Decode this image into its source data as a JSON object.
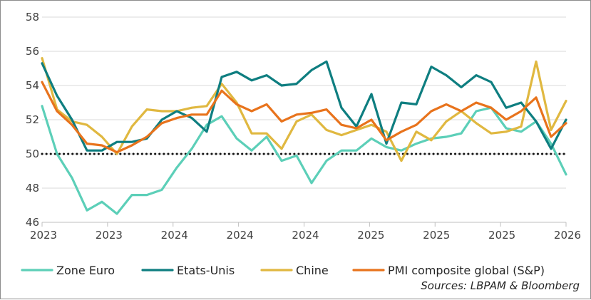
{
  "chart_data": {
    "type": "line",
    "x_labels": [
      "2023",
      "2023",
      "2024",
      "2024",
      "2024",
      "2025",
      "2025",
      "2025",
      "2026"
    ],
    "ylim": [
      46,
      58
    ],
    "yticks": [
      46,
      48,
      50,
      52,
      54,
      56,
      58
    ],
    "reference_line": 50,
    "grid": "horizontal",
    "legend_position": "bottom",
    "source": "Sources: LBPAM & Bloomberg",
    "series": [
      {
        "name": "Zone Euro",
        "color": "#5ccfb8",
        "values": [
          52.8,
          50.0,
          48.6,
          46.7,
          47.2,
          46.5,
          47.6,
          47.6,
          47.9,
          49.2,
          50.3,
          51.7,
          52.2,
          50.9,
          50.2,
          51.0,
          49.6,
          49.9,
          48.3,
          49.6,
          50.2,
          50.2,
          50.9,
          50.4,
          50.2,
          50.6,
          50.9,
          51.0,
          51.2,
          52.5,
          52.7,
          51.5,
          51.3,
          51.9,
          50.6,
          48.8
        ]
      },
      {
        "name": "Etats-Unis",
        "color": "#0e7e80",
        "values": [
          55.3,
          53.4,
          52.0,
          50.2,
          50.2,
          50.7,
          50.7,
          50.9,
          52.0,
          52.5,
          52.1,
          51.3,
          54.5,
          54.8,
          54.3,
          54.6,
          54.0,
          54.1,
          54.9,
          55.4,
          52.7,
          51.6,
          53.5,
          50.6,
          53.0,
          52.9,
          55.1,
          54.6,
          53.9,
          54.6,
          54.2,
          52.7,
          53.0,
          51.9,
          50.3,
          52.0
        ]
      },
      {
        "name": "Chine",
        "color": "#e0b840",
        "values": [
          55.6,
          52.6,
          51.9,
          51.7,
          51.0,
          50.0,
          51.6,
          52.6,
          52.5,
          52.5,
          52.7,
          52.8,
          54.1,
          53.0,
          51.2,
          51.2,
          50.3,
          51.9,
          52.3,
          51.4,
          51.1,
          51.4,
          51.7,
          51.3,
          49.6,
          51.3,
          50.8,
          51.9,
          52.5,
          51.8,
          51.2,
          51.3,
          51.6,
          55.4,
          51.4,
          53.1
        ]
      },
      {
        "name": "PMI composite global (S&P)",
        "color": "#e8731c",
        "values": [
          54.2,
          52.5,
          51.7,
          50.6,
          50.5,
          50.1,
          50.5,
          51.0,
          51.8,
          52.1,
          52.3,
          52.3,
          53.7,
          52.9,
          52.5,
          52.9,
          51.9,
          52.3,
          52.4,
          52.6,
          51.7,
          51.5,
          52.0,
          50.8,
          51.3,
          51.7,
          52.5,
          52.9,
          52.5,
          53.0,
          52.7,
          52.0,
          52.5,
          53.3,
          51.0,
          51.8
        ]
      }
    ]
  }
}
